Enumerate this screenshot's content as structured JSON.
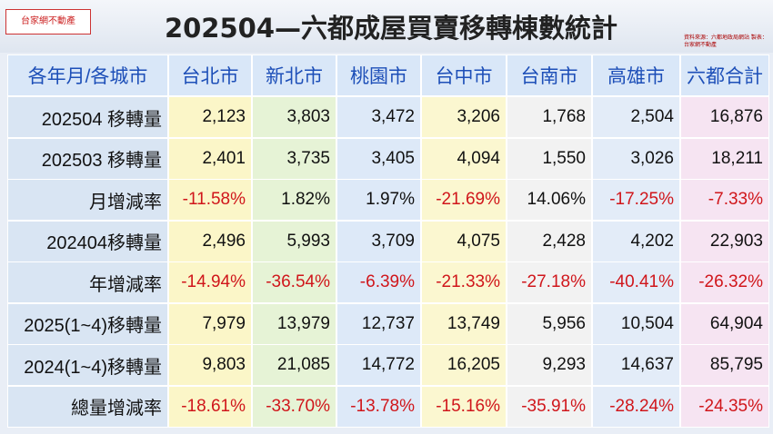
{
  "header": {
    "logo": "台家網不動產",
    "title": "202504—六都成屋買賣移轉棟數統計",
    "note": "資料來源：六都地政局網站 製表：台家網不動產"
  },
  "table": {
    "columns": [
      "各年月/各城市",
      "台北市",
      "新北市",
      "桃園市",
      "台中市",
      "台南市",
      "高雄市",
      "六都合計"
    ],
    "rows": [
      [
        "202504 移轉量",
        "2,123",
        "3,803",
        "3,472",
        "3,206",
        "1,768",
        "2,504",
        "16,876"
      ],
      [
        "202503 移轉量",
        "2,401",
        "3,735",
        "3,405",
        "4,094",
        "1,550",
        "3,026",
        "18,211"
      ],
      [
        "月增減率",
        "-11.58%",
        "1.82%",
        "1.97%",
        "-21.69%",
        "14.06%",
        "-17.25%",
        "-7.33%"
      ],
      [
        "202404移轉量",
        "2,496",
        "5,993",
        "3,709",
        "4,075",
        "2,428",
        "4,202",
        "22,903"
      ],
      [
        "年增減率",
        "-14.94%",
        "-36.54%",
        "-6.39%",
        "-21.33%",
        "-27.18%",
        "-40.41%",
        "-26.32%"
      ],
      [
        "2025(1~4)移轉量",
        "7,979",
        "13,979",
        "12,737",
        "13,749",
        "5,956",
        "10,504",
        "64,904"
      ],
      [
        "2024(1~4)移轉量",
        "9,803",
        "21,085",
        "14,772",
        "16,205",
        "9,293",
        "14,637",
        "85,795"
      ],
      [
        "總量增減率",
        "-18.61%",
        "-33.70%",
        "-13.78%",
        "-15.16%",
        "-35.91%",
        "-28.24%",
        "-24.35%"
      ]
    ]
  }
}
